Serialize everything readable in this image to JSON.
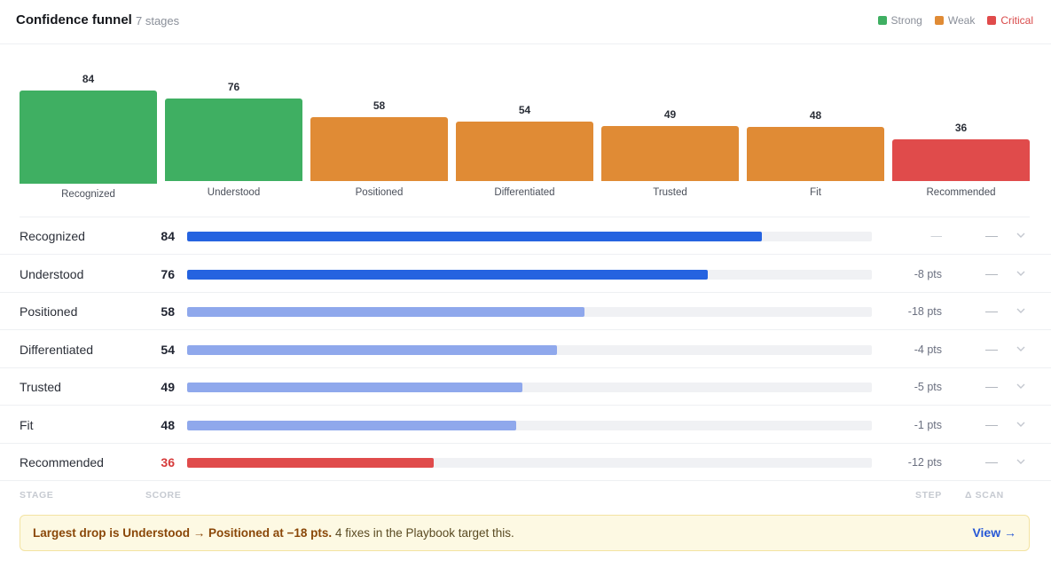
{
  "header": {
    "title": "Confidence funnel",
    "subtitle": "7 stages",
    "legend": [
      {
        "label": "Strong",
        "color": "#3faf62"
      },
      {
        "label": "Weak",
        "color": "#e08b35"
      },
      {
        "label": "Critical",
        "color": "#e04b4b"
      }
    ]
  },
  "chart_data": {
    "type": "bar",
    "title": "Confidence funnel",
    "categories": [
      "Recognized",
      "Understood",
      "Positioned",
      "Differentiated",
      "Trusted",
      "Fit",
      "Recommended"
    ],
    "values": [
      84,
      76,
      58,
      54,
      49,
      48,
      36
    ],
    "status": [
      "Strong",
      "Strong",
      "Weak",
      "Weak",
      "Weak",
      "Weak",
      "Critical"
    ],
    "colors": {
      "Strong": "#3faf62",
      "Weak": "#e08b35",
      "Critical": "#e04b4b"
    },
    "ylim": [
      0,
      100
    ],
    "legend": "top-right"
  },
  "table": {
    "columns": {
      "stage": "STAGE",
      "score": "SCORE",
      "step": "STEP",
      "delta": "Δ SCAN"
    },
    "bar_max": 100,
    "bar_colors": {
      "top": "#2563e0",
      "mid": "#8fa8ec",
      "critical": "#e04b4b"
    },
    "rows": [
      {
        "stage": "Recognized",
        "score": "84",
        "value": 84,
        "step": "—",
        "delta": "—",
        "bar": "top"
      },
      {
        "stage": "Understood",
        "score": "76",
        "value": 76,
        "step": "-8 pts",
        "delta": "—",
        "bar": "top"
      },
      {
        "stage": "Positioned",
        "score": "58",
        "value": 58,
        "step": "-18 pts",
        "delta": "—",
        "bar": "mid"
      },
      {
        "stage": "Differentiated",
        "score": "54",
        "value": 54,
        "step": "-4 pts",
        "delta": "—",
        "bar": "mid"
      },
      {
        "stage": "Trusted",
        "score": "49",
        "value": 49,
        "step": "-5 pts",
        "delta": "—",
        "bar": "mid"
      },
      {
        "stage": "Fit",
        "score": "48",
        "value": 48,
        "step": "-1 pts",
        "delta": "—",
        "bar": "mid"
      },
      {
        "stage": "Recommended",
        "score": "36",
        "value": 36,
        "step": "-12 pts",
        "delta": "—",
        "bar": "critical"
      }
    ]
  },
  "callout": {
    "strong": "Largest drop is Understood → Positioned at −18 pts.",
    "rest": " 4 fixes in the Playbook target this.",
    "link": "View →"
  }
}
